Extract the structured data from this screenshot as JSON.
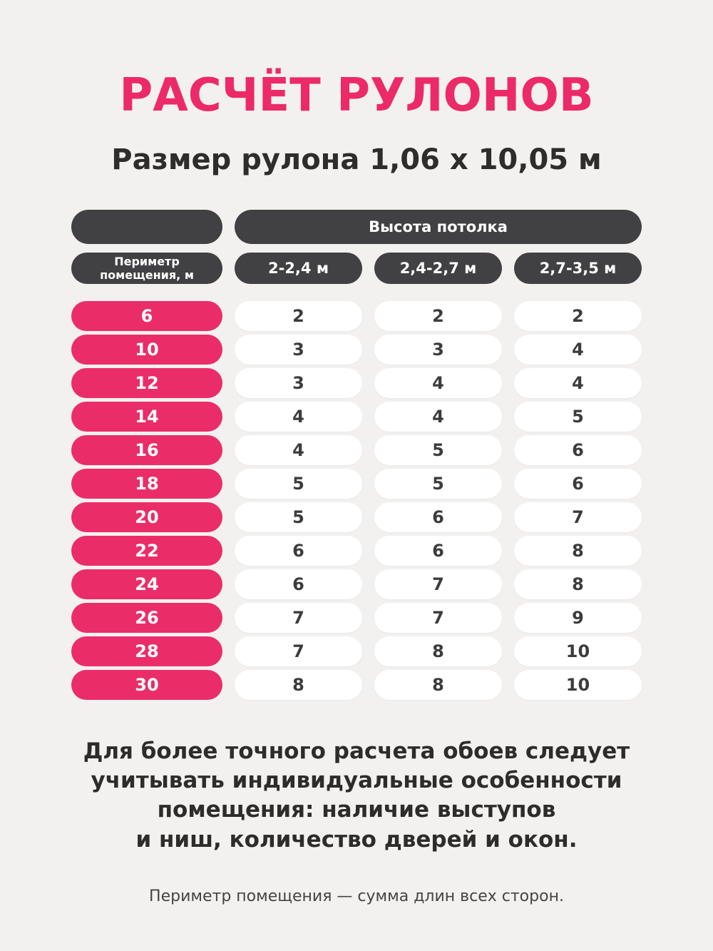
{
  "page": {
    "title": "РАСЧЁТ РУЛОНОВ",
    "subtitle": "Размер рулона 1,06 х 10,05 м",
    "footer_main": "Для более точного расчета обоев следует\nучитывать индивидуальные особенности\nпомещения: наличие выступов\nи ниш, количество дверей и окон.",
    "footer_note": "Периметр помещения — сумма длин всех сторон."
  },
  "chart_data": {
    "type": "table",
    "title": "РАСЧЁТ РУЛОНОВ",
    "subtitle": "Размер рулона 1,06 х 10,05 м",
    "header_group": "Высота потолка",
    "row_header": "Периметр помещения, м",
    "columns": [
      "2-2,4 м",
      "2,4-2,7 м",
      "2,7-3,5 м"
    ],
    "rows": [
      {
        "perimeter": "6",
        "values": [
          "2",
          "2",
          "2"
        ]
      },
      {
        "perimeter": "10",
        "values": [
          "3",
          "3",
          "4"
        ]
      },
      {
        "perimeter": "12",
        "values": [
          "3",
          "4",
          "4"
        ]
      },
      {
        "perimeter": "14",
        "values": [
          "4",
          "4",
          "5"
        ]
      },
      {
        "perimeter": "16",
        "values": [
          "4",
          "5",
          "6"
        ]
      },
      {
        "perimeter": "18",
        "values": [
          "5",
          "5",
          "6"
        ]
      },
      {
        "perimeter": "20",
        "values": [
          "5",
          "6",
          "7"
        ]
      },
      {
        "perimeter": "22",
        "values": [
          "6",
          "6",
          "8"
        ]
      },
      {
        "perimeter": "24",
        "values": [
          "6",
          "7",
          "8"
        ]
      },
      {
        "perimeter": "26",
        "values": [
          "7",
          "7",
          "9"
        ]
      },
      {
        "perimeter": "28",
        "values": [
          "7",
          "8",
          "10"
        ]
      },
      {
        "perimeter": "30",
        "values": [
          "8",
          "8",
          "10"
        ]
      }
    ]
  },
  "colors": {
    "accent_pink": "#ea2d68",
    "title_pink": "#ec2a67",
    "dark_pill": "#414042",
    "text_dark": "#2d2c2b",
    "background": "#f2f1ef",
    "cell_white": "#ffffff"
  }
}
